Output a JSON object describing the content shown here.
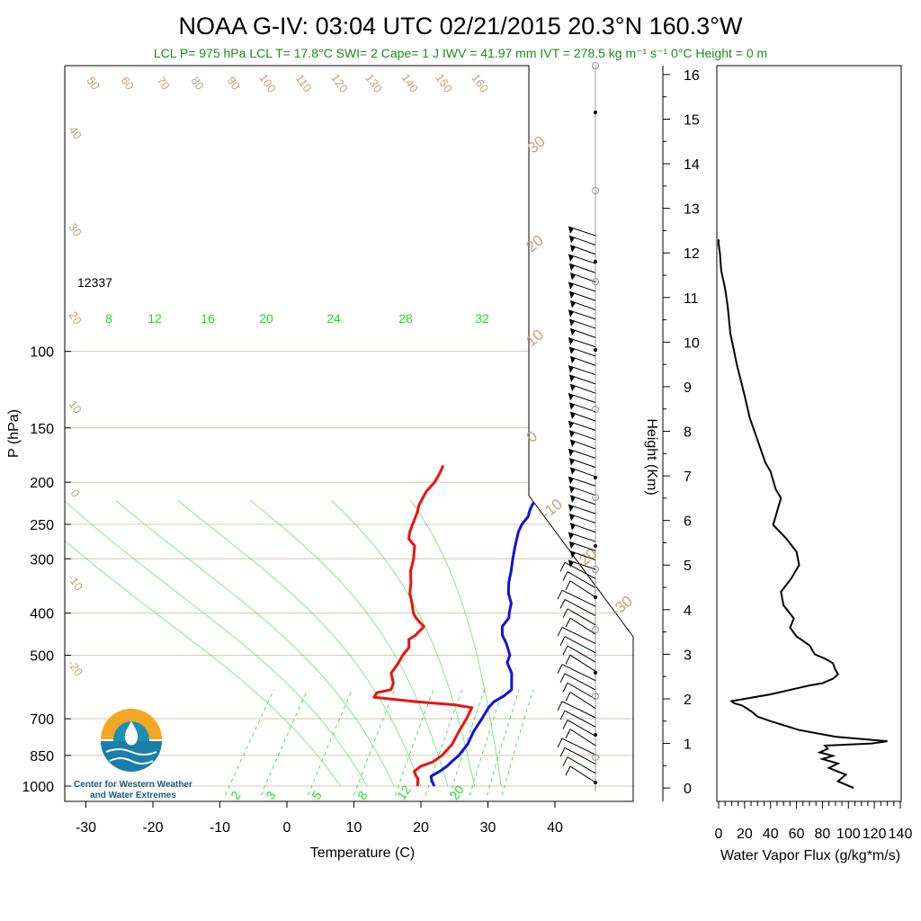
{
  "title": "NOAA G-IV: 03:04 UTC 02/21/2015  20.3°N 160.3°W",
  "subtitle": "LCL P= 975 hPa  LCL T= 17.8°C  SWI= 2  Cape= 1 J  IWV = 41.97 mm  IVT = 278.5 kg m⁻¹ s⁻¹  0°C Height = 0 m",
  "height_label_12337": "12337",
  "logo_text_line1": "Center for Western Weather",
  "logo_text_line2": "and Water Extremes",
  "colors": {
    "temperature": "#ee1111",
    "dewpoint": "#1111dd",
    "mixing_ratio": "#22dd22",
    "adiabat": "#c8a27a",
    "isobar": "#d9c7b0",
    "flux": "#000000"
  },
  "chart_data": [
    {
      "type": "line",
      "name": "skew-t",
      "xlabel": "Temperature (C)",
      "ylabel": "P (hPa)",
      "x_ticks": [
        "-30",
        "-20",
        "-10",
        "0",
        "10",
        "20",
        "30",
        "40"
      ],
      "y_ticks": [
        "100",
        "150",
        "200",
        "250",
        "300",
        "400",
        "500",
        "700",
        "850",
        "1000"
      ],
      "mixing_ratio_labels_top": [
        "8",
        "12",
        "16",
        "20",
        "24",
        "28",
        "32"
      ],
      "mixing_ratio_labels_bottom": [
        "2",
        "3",
        "5",
        "8",
        "12",
        "20"
      ],
      "theta_labels_top": [
        "50",
        "60",
        "70",
        "80",
        "90",
        "100",
        "110",
        "120",
        "130",
        "140",
        "150",
        "160"
      ],
      "theta_labels_left": [
        "40",
        "30",
        "20",
        "10",
        "0",
        "-10",
        "-20"
      ],
      "theta_labels_right": [
        "30",
        "20",
        "10",
        "0",
        "-10",
        "-20",
        "-30"
      ],
      "series": [
        {
          "name": "Temperature",
          "points": [
            [
              19.5,
              1000
            ],
            [
              19.0,
              980
            ],
            [
              18.5,
              960
            ],
            [
              18.0,
              950
            ],
            [
              17.0,
              925
            ],
            [
              17.3,
              900
            ],
            [
              18.5,
              880
            ],
            [
              19.0,
              850
            ],
            [
              19.0,
              800
            ],
            [
              18.3,
              750
            ],
            [
              17.7,
              700
            ],
            [
              17.0,
              660
            ],
            [
              14.0,
              650
            ],
            [
              8.0,
              640
            ],
            [
              3.5,
              630
            ],
            [
              1.0,
              625
            ],
            [
              0.8,
              610
            ],
            [
              2.5,
              600
            ],
            [
              2.0,
              580
            ],
            [
              0.3,
              550
            ],
            [
              0.0,
              520
            ],
            [
              -0.4,
              500
            ],
            [
              -0.5,
              480
            ],
            [
              -1.6,
              460
            ],
            [
              -1.2,
              450
            ],
            [
              -1.1,
              430
            ],
            [
              -3.5,
              410
            ],
            [
              -4.5,
              400
            ],
            [
              -6.0,
              380
            ],
            [
              -7.7,
              360
            ],
            [
              -9.0,
              340
            ],
            [
              -10.6,
              320
            ],
            [
              -11.8,
              300
            ],
            [
              -13.4,
              280
            ],
            [
              -15.2,
              270
            ],
            [
              -16.0,
              260
            ],
            [
              -16.6,
              250
            ],
            [
              -17.5,
              235
            ],
            [
              -18.3,
              225
            ],
            [
              -19.0,
              210
            ],
            [
              -19.0,
              200
            ],
            [
              -19.5,
              190
            ],
            [
              -20.0,
              183
            ]
          ]
        },
        {
          "name": "Dewpoint",
          "points": [
            [
              22.0,
              1000
            ],
            [
              21.0,
              975
            ],
            [
              20.2,
              950
            ],
            [
              20.8,
              925
            ],
            [
              21.2,
              900
            ],
            [
              21.3,
              875
            ],
            [
              21.5,
              850
            ],
            [
              21.3,
              800
            ],
            [
              20.5,
              750
            ],
            [
              20.0,
              700
            ],
            [
              19.5,
              660
            ],
            [
              19.5,
              640
            ],
            [
              20.2,
              620
            ],
            [
              20.5,
              600
            ],
            [
              18.3,
              550
            ],
            [
              16.2,
              520
            ],
            [
              15.6,
              500
            ],
            [
              13.5,
              470
            ],
            [
              11.8,
              450
            ],
            [
              10.6,
              430
            ],
            [
              10.4,
              410
            ],
            [
              9.8,
              400
            ],
            [
              8.8,
              380
            ],
            [
              7.0,
              360
            ],
            [
              5.6,
              340
            ],
            [
              4.4,
              320
            ],
            [
              3.0,
              300
            ],
            [
              1.6,
              280
            ],
            [
              0.2,
              260
            ],
            [
              -0.3,
              250
            ],
            [
              -0.4,
              240
            ],
            [
              -1.0,
              232
            ],
            [
              -1.4,
              225
            ],
            [
              -1.6,
              210
            ],
            [
              -1.6,
              200
            ],
            [
              -1.7,
              193
            ],
            [
              -2.0,
              188
            ]
          ]
        }
      ],
      "wind_barbs_count": 60,
      "xlim": [
        -35,
        45
      ],
      "ylim": [
        1050,
        100
      ]
    },
    {
      "type": "line",
      "name": "water-vapor-flux",
      "xlabel": "Water Vapor Flux (g/kg*m/s)",
      "ylabel": "Height (Km)",
      "x_ticks": [
        "0",
        "20",
        "40",
        "60",
        "80",
        "100",
        "120",
        "140"
      ],
      "y_ticks": [
        "0",
        "1",
        "2",
        "3",
        "4",
        "5",
        "6",
        "7",
        "8",
        "9",
        "10",
        "11",
        "12",
        "13",
        "14",
        "15",
        "16"
      ],
      "xlim": [
        0,
        140
      ],
      "ylim": [
        -0.3,
        16.2
      ],
      "x": [
        104,
        92,
        98,
        85,
        92,
        80,
        88,
        78,
        84,
        82,
        118,
        130,
        90,
        62,
        40,
        30,
        26,
        22,
        18,
        12,
        10,
        40,
        70,
        80,
        88,
        92,
        90,
        88,
        82,
        74,
        70,
        60,
        55,
        58,
        50,
        48,
        56,
        62,
        60,
        52,
        42,
        44,
        46,
        48,
        44,
        42,
        40,
        36,
        30,
        24,
        20,
        14,
        9,
        7,
        5,
        2,
        1,
        0,
        0
      ],
      "y": [
        0.0,
        0.15,
        0.3,
        0.45,
        0.55,
        0.65,
        0.72,
        0.8,
        0.88,
        0.95,
        1.0,
        1.05,
        1.15,
        1.3,
        1.5,
        1.6,
        1.7,
        1.78,
        1.85,
        1.9,
        1.95,
        2.1,
        2.3,
        2.35,
        2.45,
        2.55,
        2.65,
        2.8,
        2.9,
        3.0,
        3.2,
        3.4,
        3.6,
        3.8,
        4.1,
        4.4,
        4.7,
        5.0,
        5.3,
        5.6,
        5.9,
        6.1,
        6.3,
        6.5,
        6.7,
        6.9,
        7.1,
        7.3,
        7.8,
        8.3,
        8.8,
        9.5,
        10.2,
        10.8,
        11.2,
        11.6,
        12.0,
        12.2,
        12.3
      ]
    }
  ]
}
